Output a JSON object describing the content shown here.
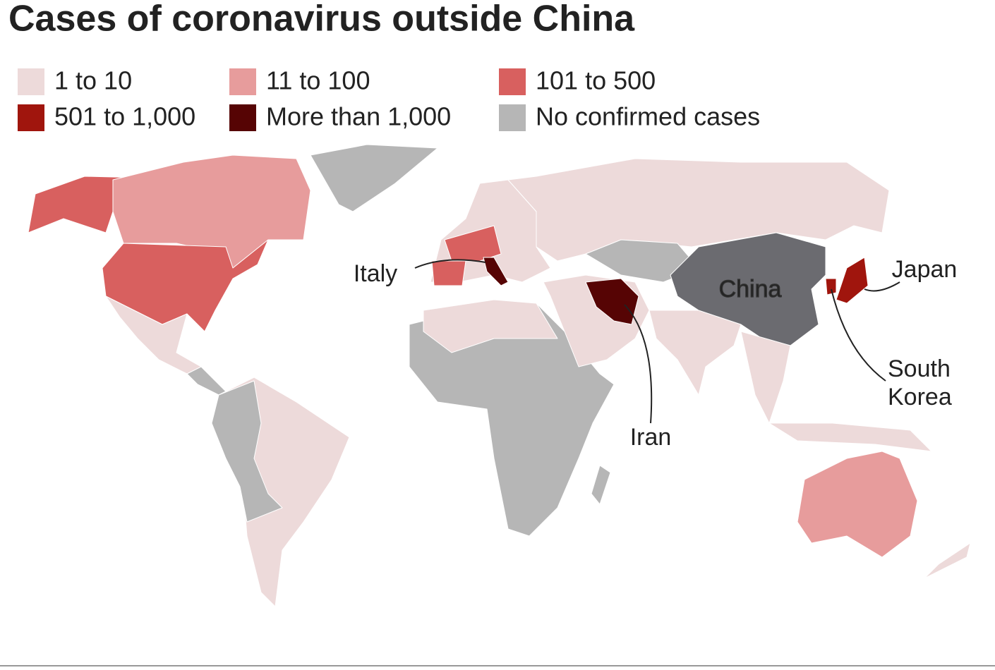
{
  "header": {
    "title": "Cases of coronavirus outside China"
  },
  "legend": [
    {
      "label": "1 to 10",
      "color": "#eddada"
    },
    {
      "label": "11 to 100",
      "color": "#e79c9c"
    },
    {
      "label": "101 to 500",
      "color": "#d8605f"
    },
    {
      "label": "501 to 1,000",
      "color": "#a0150d"
    },
    {
      "label": "More than 1,000",
      "color": "#560404"
    },
    {
      "label": "No confirmed cases",
      "color": "#b6b6b6"
    }
  ],
  "map": {
    "china_color": "#6b6b70",
    "labels": [
      {
        "label": "Italy"
      },
      {
        "label": "Iran"
      },
      {
        "label": "China"
      },
      {
        "label": "Japan"
      },
      {
        "label": "South Korea"
      }
    ]
  }
}
